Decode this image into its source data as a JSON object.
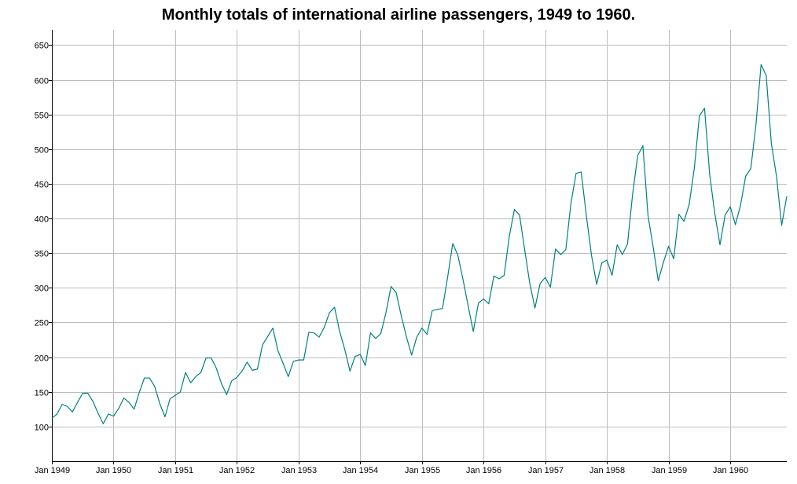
{
  "chart_data": {
    "type": "line",
    "title": "Monthly totals of international airline passengers, 1949 to 1960.",
    "xlabel": "",
    "ylabel": "",
    "ylim": [
      50,
      672
    ],
    "y_ticks": [
      100,
      150,
      200,
      250,
      300,
      350,
      400,
      450,
      500,
      550,
      600,
      650
    ],
    "x_tick_labels": [
      "Jan 1949",
      "Jan 1950",
      "Jan 1951",
      "Jan 1952",
      "Jan 1953",
      "Jan 1954",
      "Jan 1955",
      "Jan 1956",
      "Jan 1957",
      "Jan 1958",
      "Jan 1959",
      "Jan 1960"
    ],
    "grid": true,
    "line_color": "#008080",
    "series": [
      {
        "name": "passengers",
        "start": "Jan 1949",
        "frequency": "monthly",
        "values": [
          112,
          118,
          132,
          129,
          121,
          135,
          148,
          148,
          136,
          119,
          104,
          118,
          115,
          126,
          141,
          135,
          125,
          149,
          170,
          170,
          158,
          133,
          114,
          140,
          145,
          150,
          178,
          163,
          172,
          178,
          199,
          199,
          184,
          162,
          146,
          166,
          171,
          180,
          193,
          181,
          183,
          218,
          230,
          242,
          209,
          191,
          172,
          194,
          196,
          196,
          236,
          235,
          229,
          243,
          264,
          272,
          237,
          211,
          180,
          201,
          204,
          188,
          235,
          227,
          234,
          264,
          302,
          293,
          259,
          229,
          203,
          229,
          242,
          233,
          267,
          269,
          270,
          315,
          364,
          347,
          312,
          274,
          237,
          278,
          284,
          277,
          317,
          313,
          318,
          374,
          413,
          405,
          355,
          306,
          271,
          306,
          315,
          301,
          356,
          348,
          355,
          422,
          465,
          467,
          404,
          347,
          305,
          336,
          340,
          318,
          362,
          348,
          363,
          435,
          491,
          505,
          404,
          359,
          310,
          337,
          360,
          342,
          406,
          396,
          420,
          472,
          548,
          559,
          463,
          407,
          362,
          405,
          417,
          391,
          419,
          461,
          472,
          535,
          622,
          606,
          508,
          461,
          390,
          432
        ]
      }
    ]
  }
}
